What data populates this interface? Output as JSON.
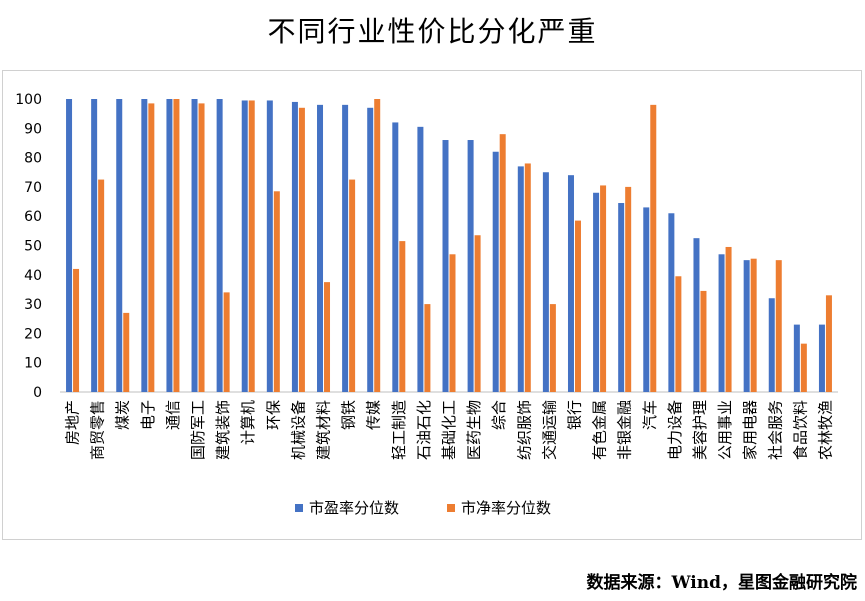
{
  "title": "不同行业性价比分化严重",
  "source": "数据来源：Wind，星图金融研究院",
  "colors": {
    "pe": "#4472C4",
    "pb": "#ED7D31",
    "axis": "#BFBFBF"
  },
  "chart_data": {
    "type": "bar",
    "title": "不同行业性价比分化严重",
    "ylim": [
      0,
      100
    ],
    "yticks": [
      0,
      10,
      20,
      30,
      40,
      50,
      60,
      70,
      80,
      90,
      100
    ],
    "legend_position": "bottom",
    "grid": false,
    "categories": [
      "房地产",
      "商贸零售",
      "煤炭",
      "电子",
      "通信",
      "国防军工",
      "建筑装饰",
      "计算机",
      "环保",
      "机械设备",
      "建筑材料",
      "钢铁",
      "传媒",
      "轻工制造",
      "石油石化",
      "基础化工",
      "医药生物",
      "综合",
      "纺织服饰",
      "交通运输",
      "银行",
      "有色金属",
      "非银金融",
      "汽车",
      "电力设备",
      "美容护理",
      "公用事业",
      "家用电器",
      "社会服务",
      "食品饮料",
      "农林牧渔"
    ],
    "series": [
      {
        "name": "市盈率分位数",
        "values": [
          100,
          100,
          100,
          100,
          100,
          100,
          100,
          99.5,
          99.5,
          99,
          98,
          98,
          97,
          92,
          90.5,
          86,
          86,
          82,
          77,
          75,
          74,
          68,
          64.5,
          63,
          61,
          52.5,
          47,
          45,
          32,
          23,
          23
        ]
      },
      {
        "name": "市净率分位数",
        "values": [
          42,
          72.5,
          27,
          98.5,
          100,
          98.5,
          34,
          99.5,
          68.5,
          97,
          37.5,
          72.5,
          100,
          51.5,
          30,
          47,
          53.5,
          88,
          78,
          30,
          58.5,
          70.5,
          70,
          98,
          39.5,
          34.5,
          49.5,
          45.5,
          45,
          16.5,
          33
        ]
      }
    ]
  }
}
